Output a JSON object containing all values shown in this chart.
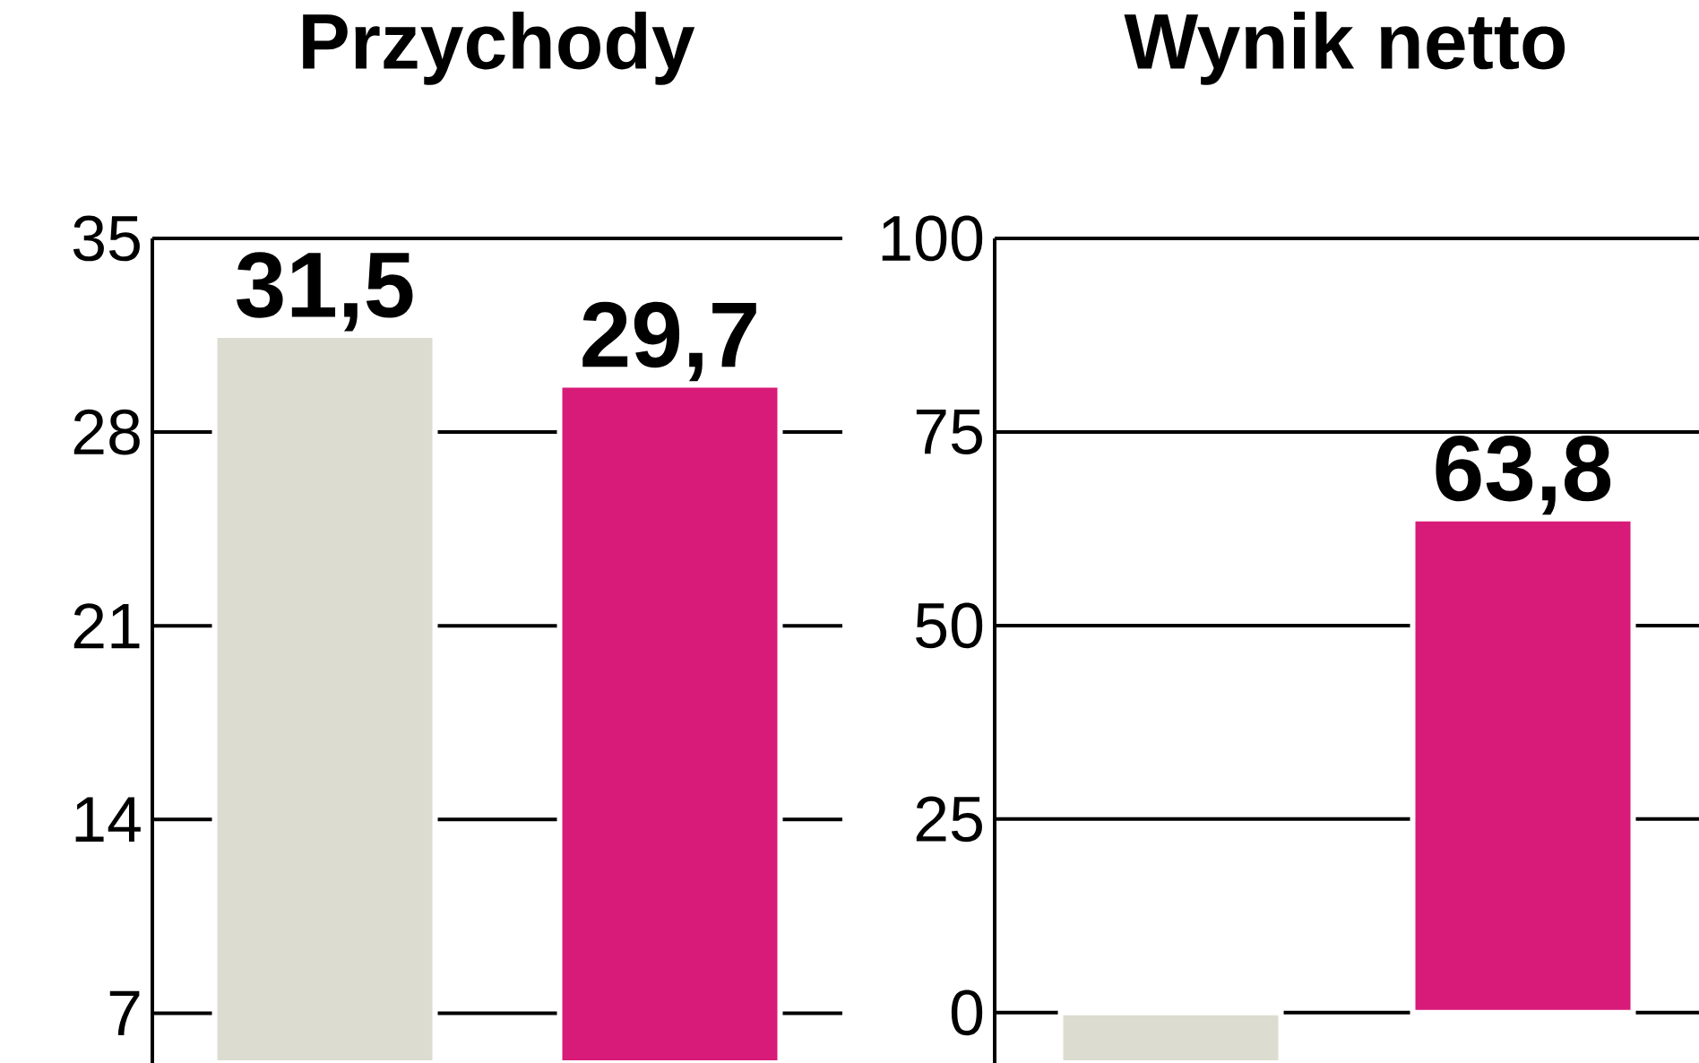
{
  "chart_data": [
    {
      "type": "bar",
      "title": "Przychody",
      "categories": [
        null,
        null
      ],
      "values": [
        31.5,
        29.7
      ],
      "colors": [
        "#dcdcd0",
        "#d81b78"
      ],
      "ylim": [
        5.2,
        35
      ],
      "yticks": [
        7,
        14,
        21,
        28,
        35
      ],
      "grid": "y",
      "value_labels": [
        "31,5",
        "29,7"
      ]
    },
    {
      "type": "bar",
      "title": "Wynik netto",
      "categories": [
        null,
        null
      ],
      "values": [
        -6.5,
        63.8
      ],
      "colors": [
        "#dcdcd0",
        "#d81b78"
      ],
      "ylim": [
        -6.5,
        100
      ],
      "yticks": [
        0,
        25,
        50,
        75,
        100
      ],
      "grid": "y",
      "value_labels": [
        null,
        "63,8"
      ]
    }
  ]
}
